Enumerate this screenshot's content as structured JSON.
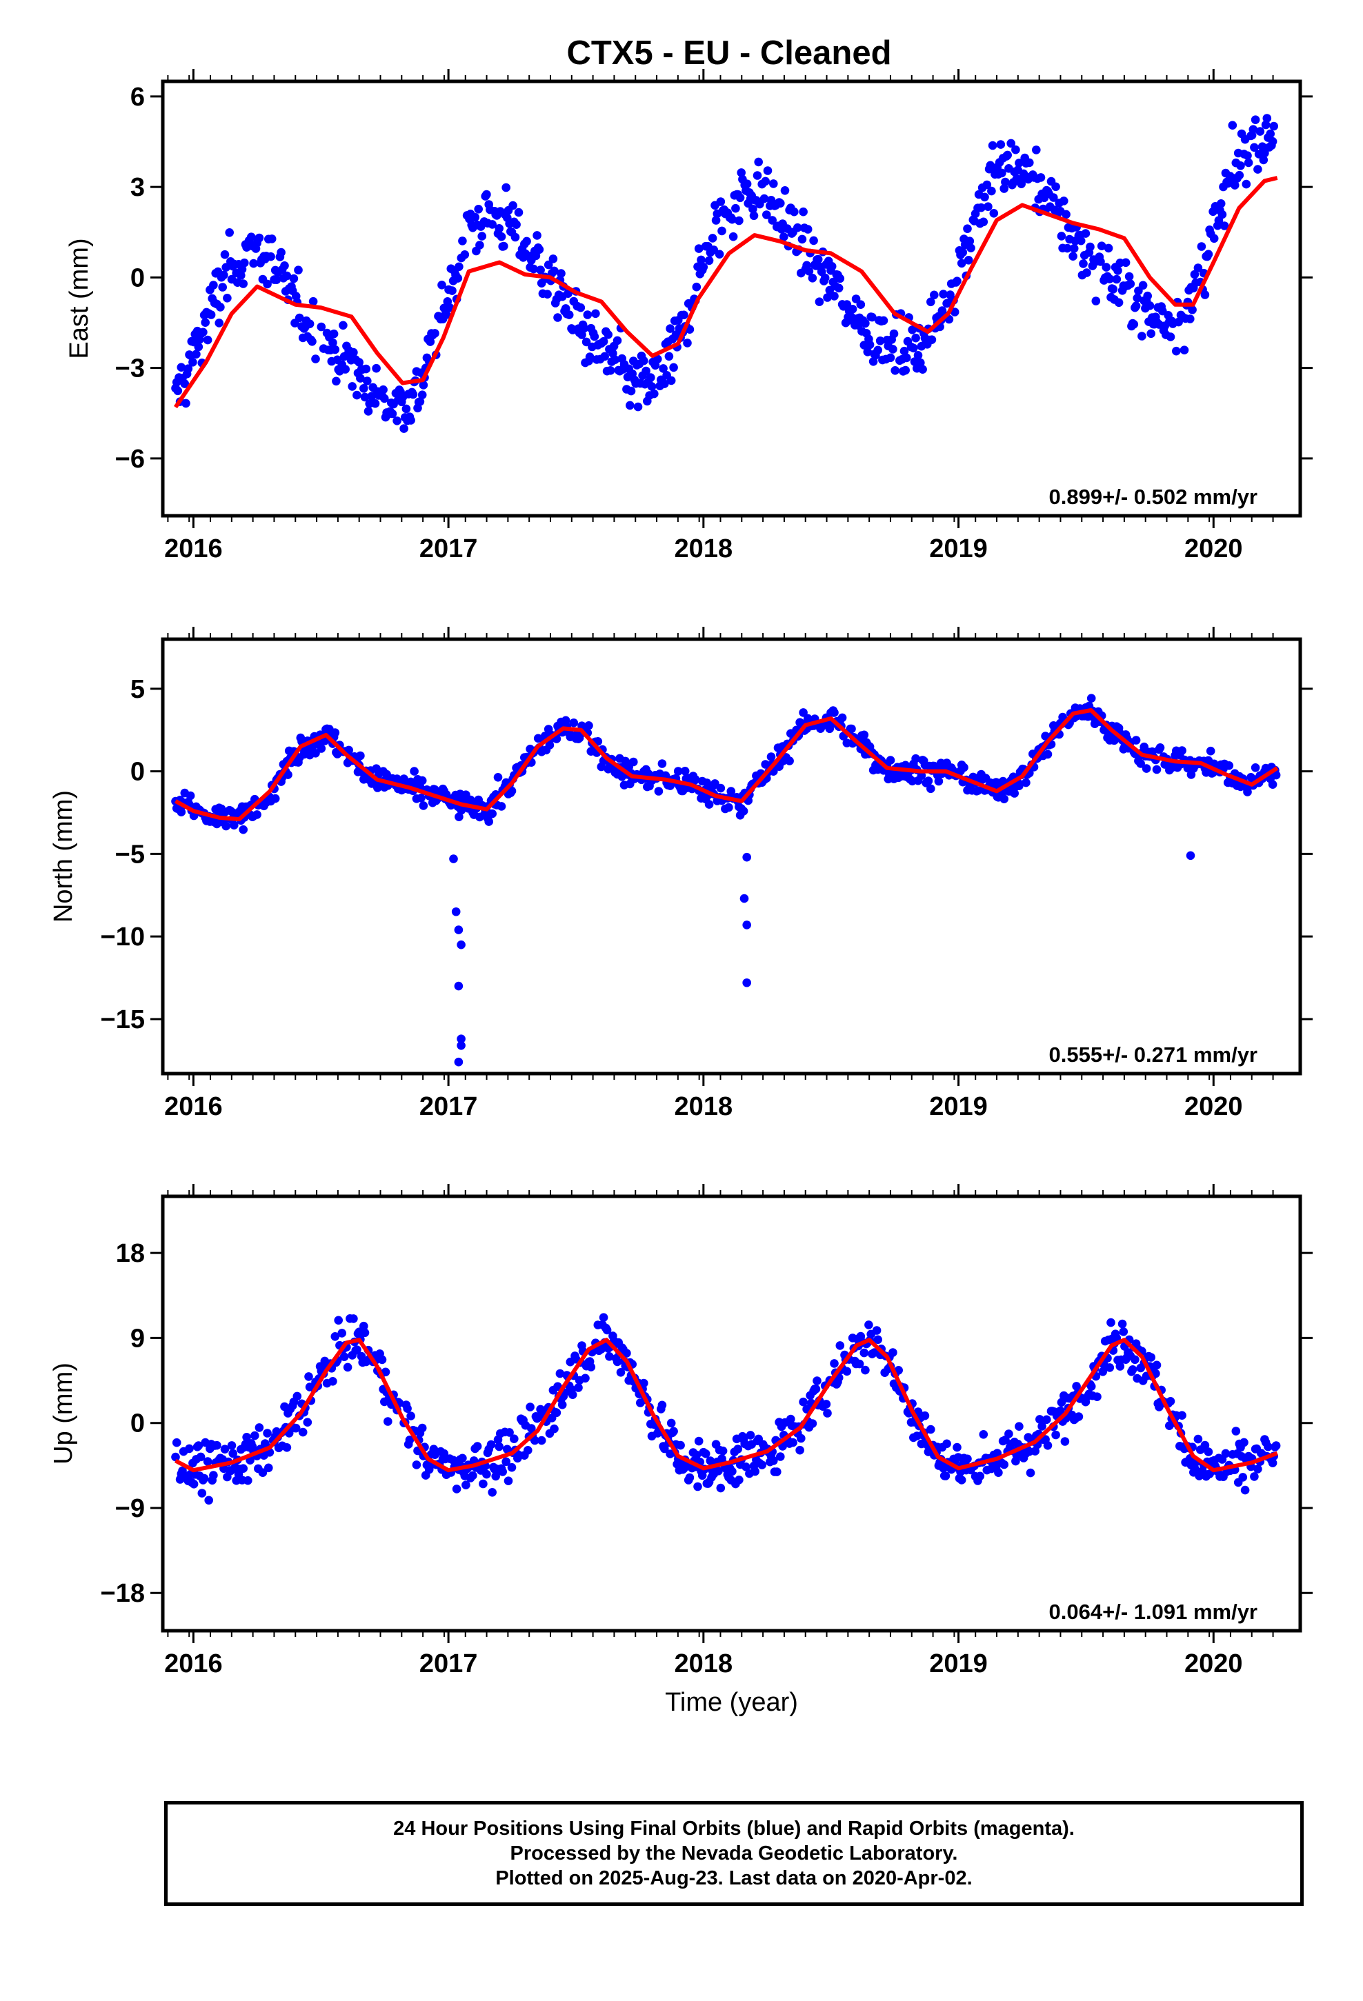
{
  "title": "CTX5  - EU - Cleaned",
  "footer": {
    "line1": "24 Hour Positions Using Final Orbits (blue) and Rapid Orbits (magenta).",
    "line2": "Processed by the Nevada Geodetic Laboratory.",
    "line3": "Plotted on 2025-Aug-23. Last data on 2020-Apr-02."
  },
  "colors": {
    "points": "#0000ff",
    "fit": "#ff0000",
    "frame": "#000000"
  },
  "chart_data": [
    {
      "type": "scatter",
      "component": "east",
      "ylabel": "East (mm)",
      "xlabel": "",
      "xlim": [
        2015.88,
        2020.34
      ],
      "ylim": [
        -7.9,
        6.5
      ],
      "xticks": [
        "2016",
        "2017",
        "2018",
        "2019",
        "2020"
      ],
      "yticks": [
        "6",
        "3",
        "0",
        "−3",
        "−6"
      ],
      "rate": "0.899+/- 0.502 mm/yr",
      "fit_x": [
        2015.93,
        2016.05,
        2016.15,
        2016.25,
        2016.4,
        2016.5,
        2016.62,
        2016.72,
        2016.82,
        2016.9,
        2016.98,
        2017.08,
        2017.2,
        2017.3,
        2017.4,
        2017.5,
        2017.6,
        2017.7,
        2017.8,
        2017.9,
        2017.98,
        2018.1,
        2018.2,
        2018.3,
        2018.4,
        2018.5,
        2018.62,
        2018.75,
        2018.88,
        2018.96,
        2019.05,
        2019.15,
        2019.25,
        2019.35,
        2019.45,
        2019.55,
        2019.65,
        2019.75,
        2019.85,
        2019.92,
        2020.0,
        2020.1,
        2020.2,
        2020.25
      ],
      "fit_y": [
        -4.3,
        -2.8,
        -1.2,
        -0.3,
        -0.9,
        -1.0,
        -1.3,
        -2.5,
        -3.5,
        -3.4,
        -2.0,
        0.2,
        0.5,
        0.1,
        0.0,
        -0.5,
        -0.8,
        -1.8,
        -2.6,
        -2.2,
        -0.7,
        0.8,
        1.4,
        1.2,
        0.9,
        0.8,
        0.2,
        -1.2,
        -1.8,
        -1.2,
        0.3,
        1.9,
        2.4,
        2.1,
        1.8,
        1.6,
        1.3,
        0.0,
        -0.9,
        -0.9,
        0.5,
        2.3,
        3.2,
        3.3
      ]
    },
    {
      "type": "scatter",
      "component": "north",
      "ylabel": "North (mm)",
      "xlabel": "",
      "xlim": [
        2015.88,
        2020.34
      ],
      "ylim": [
        -18.3,
        8.0
      ],
      "xticks": [
        "2016",
        "2017",
        "2018",
        "2019",
        "2020"
      ],
      "yticks": [
        "5",
        "0",
        "−5",
        "−10",
        "−15"
      ],
      "rate": "0.555+/- 0.271 mm/yr",
      "fit_x": [
        2015.93,
        2016.0,
        2016.1,
        2016.18,
        2016.3,
        2016.42,
        2016.52,
        2016.6,
        2016.72,
        2016.85,
        2016.95,
        2017.05,
        2017.15,
        2017.25,
        2017.35,
        2017.45,
        2017.52,
        2017.62,
        2017.72,
        2017.85,
        2017.95,
        2018.05,
        2018.15,
        2018.28,
        2018.4,
        2018.5,
        2018.6,
        2018.72,
        2018.85,
        2018.95,
        2019.05,
        2019.15,
        2019.25,
        2019.35,
        2019.45,
        2019.52,
        2019.6,
        2019.72,
        2019.85,
        2019.95,
        2020.05,
        2020.15,
        2020.25
      ],
      "fit_y": [
        -1.8,
        -2.4,
        -2.8,
        -2.9,
        -1.2,
        1.5,
        2.2,
        1.0,
        -0.5,
        -1.0,
        -1.5,
        -2.0,
        -2.3,
        -0.7,
        1.5,
        2.6,
        2.5,
        0.8,
        -0.3,
        -0.5,
        -0.8,
        -1.5,
        -1.8,
        0.5,
        2.8,
        3.2,
        1.8,
        0.2,
        0.0,
        0.0,
        -0.6,
        -1.2,
        -0.3,
        1.8,
        3.5,
        3.7,
        2.5,
        1.0,
        0.6,
        0.5,
        -0.2,
        -0.8,
        0.2
      ]
    },
    {
      "type": "scatter",
      "component": "up",
      "ylabel": "Up (mm)",
      "xlabel": "Time (year)",
      "xlim": [
        2015.88,
        2020.34
      ],
      "ylim": [
        -22.0,
        24.0
      ],
      "xticks": [
        "2016",
        "2017",
        "2018",
        "2019",
        "2020"
      ],
      "yticks": [
        "18",
        "9",
        "0",
        "−9",
        "−18"
      ],
      "rate": "0.064+/- 1.091 mm/yr",
      "fit_x": [
        2015.93,
        2016.0,
        2016.15,
        2016.3,
        2016.42,
        2016.52,
        2016.6,
        2016.65,
        2016.72,
        2016.82,
        2016.92,
        2017.0,
        2017.1,
        2017.25,
        2017.35,
        2017.45,
        2017.55,
        2017.62,
        2017.7,
        2017.8,
        2017.9,
        2018.0,
        2018.1,
        2018.25,
        2018.38,
        2018.5,
        2018.6,
        2018.65,
        2018.72,
        2018.82,
        2018.92,
        2019.0,
        2019.15,
        2019.3,
        2019.42,
        2019.52,
        2019.6,
        2019.65,
        2019.72,
        2019.82,
        2019.92,
        2020.0,
        2020.15,
        2020.25
      ],
      "fit_y": [
        -4.0,
        -5.0,
        -4.2,
        -2.6,
        1.0,
        5.5,
        8.5,
        8.8,
        6.0,
        0.5,
        -3.8,
        -5.0,
        -4.5,
        -3.2,
        -0.8,
        3.8,
        7.8,
        8.8,
        6.5,
        1.0,
        -3.5,
        -4.8,
        -4.2,
        -3.0,
        -0.5,
        4.5,
        8.2,
        8.8,
        7.0,
        1.2,
        -3.6,
        -4.8,
        -3.8,
        -2.0,
        1.0,
        5.0,
        8.2,
        8.8,
        7.0,
        1.5,
        -3.5,
        -5.0,
        -4.2,
        -3.2
      ]
    }
  ]
}
